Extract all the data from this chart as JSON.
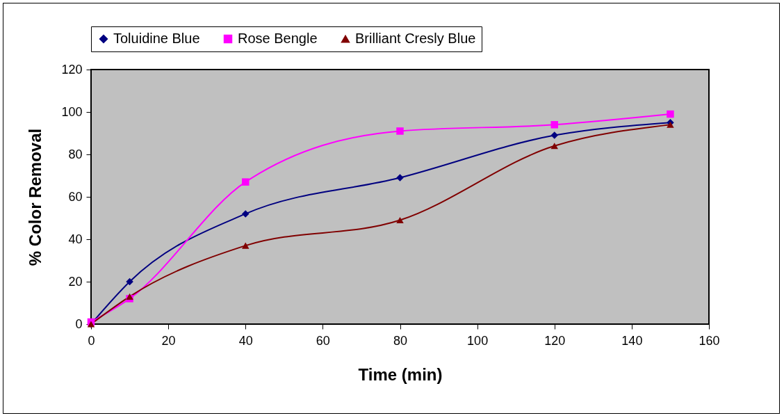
{
  "chart_data": {
    "type": "line",
    "xlabel": "Time (min)",
    "ylabel": "% Color Removal",
    "x": [
      0,
      10,
      40,
      80,
      120,
      150
    ],
    "series": [
      {
        "name": "Toluidine Blue",
        "color": "#000080",
        "marker": "diamond",
        "values": [
          0,
          20,
          52,
          69,
          89,
          95
        ]
      },
      {
        "name": "Rose Bengle",
        "color": "#ff00ff",
        "marker": "square",
        "values": [
          1,
          12,
          67,
          91,
          94,
          99
        ]
      },
      {
        "name": "Brilliant Cresly Blue",
        "color": "#800000",
        "marker": "triangle",
        "values": [
          0,
          13,
          37,
          49,
          84,
          94
        ]
      }
    ],
    "xlim": [
      0,
      160
    ],
    "xticks": [
      0,
      20,
      40,
      60,
      80,
      100,
      120,
      140,
      160
    ],
    "ylim": [
      0,
      120
    ],
    "yticks": [
      0,
      20,
      40,
      60,
      80,
      100,
      120
    ],
    "grid": false,
    "legend": "top"
  }
}
